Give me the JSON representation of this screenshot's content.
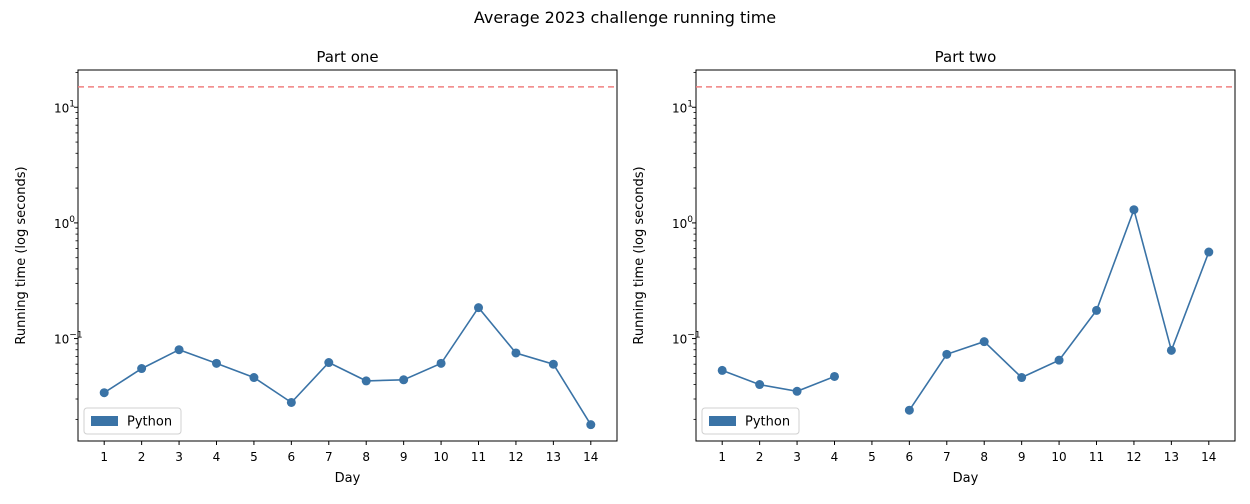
{
  "figure": {
    "suptitle": "Average 2023 challenge running time"
  },
  "chart_data": [
    {
      "type": "line",
      "scale": "log",
      "title": "Part one",
      "xlabel": "Day",
      "ylabel": "Running time (log seconds)",
      "x": [
        1,
        2,
        3,
        4,
        5,
        6,
        7,
        8,
        9,
        10,
        11,
        12,
        13,
        14
      ],
      "xticks": [
        "1",
        "2",
        "3",
        "4",
        "5",
        "6",
        "7",
        "8",
        "9",
        "10",
        "11",
        "12",
        "13",
        "14"
      ],
      "ylim": [
        0.013,
        21
      ],
      "yticks": [
        {
          "value": 0.1,
          "base": "10",
          "exp": "−1"
        },
        {
          "value": 1,
          "base": "10",
          "exp": "0"
        },
        {
          "value": 10,
          "base": "10",
          "exp": "1"
        }
      ],
      "series": [
        {
          "name": "Python",
          "color": "#3a73a6",
          "values": [
            0.034,
            0.055,
            0.08,
            0.061,
            0.046,
            0.028,
            0.062,
            0.043,
            0.044,
            0.061,
            0.185,
            0.075,
            0.06,
            0.018
          ]
        }
      ],
      "reference_line": {
        "value": 15,
        "color": "#f08080",
        "style": "dashed"
      },
      "legend": {
        "placement": "lower-left",
        "entries": [
          "Python"
        ]
      }
    },
    {
      "type": "line",
      "scale": "log",
      "title": "Part two",
      "xlabel": "Day",
      "ylabel": "Running time (log seconds)",
      "x": [
        1,
        2,
        3,
        4,
        5,
        6,
        7,
        8,
        9,
        10,
        11,
        12,
        13,
        14
      ],
      "xticks": [
        "1",
        "2",
        "3",
        "4",
        "5",
        "6",
        "7",
        "8",
        "9",
        "10",
        "11",
        "12",
        "13",
        "14"
      ],
      "ylim": [
        0.013,
        21
      ],
      "yticks": [
        {
          "value": 0.1,
          "base": "10",
          "exp": "−1"
        },
        {
          "value": 1,
          "base": "10",
          "exp": "0"
        },
        {
          "value": 10,
          "base": "10",
          "exp": "1"
        }
      ],
      "series": [
        {
          "name": "Python",
          "color": "#3a73a6",
          "values": [
            0.053,
            0.04,
            0.035,
            0.047,
            null,
            0.024,
            0.073,
            0.094,
            0.046,
            0.065,
            0.175,
            1.3,
            0.079,
            0.56
          ]
        }
      ],
      "reference_line": {
        "value": 15,
        "color": "#f08080",
        "style": "dashed"
      },
      "legend": {
        "placement": "lower-left",
        "entries": [
          "Python"
        ]
      }
    }
  ]
}
